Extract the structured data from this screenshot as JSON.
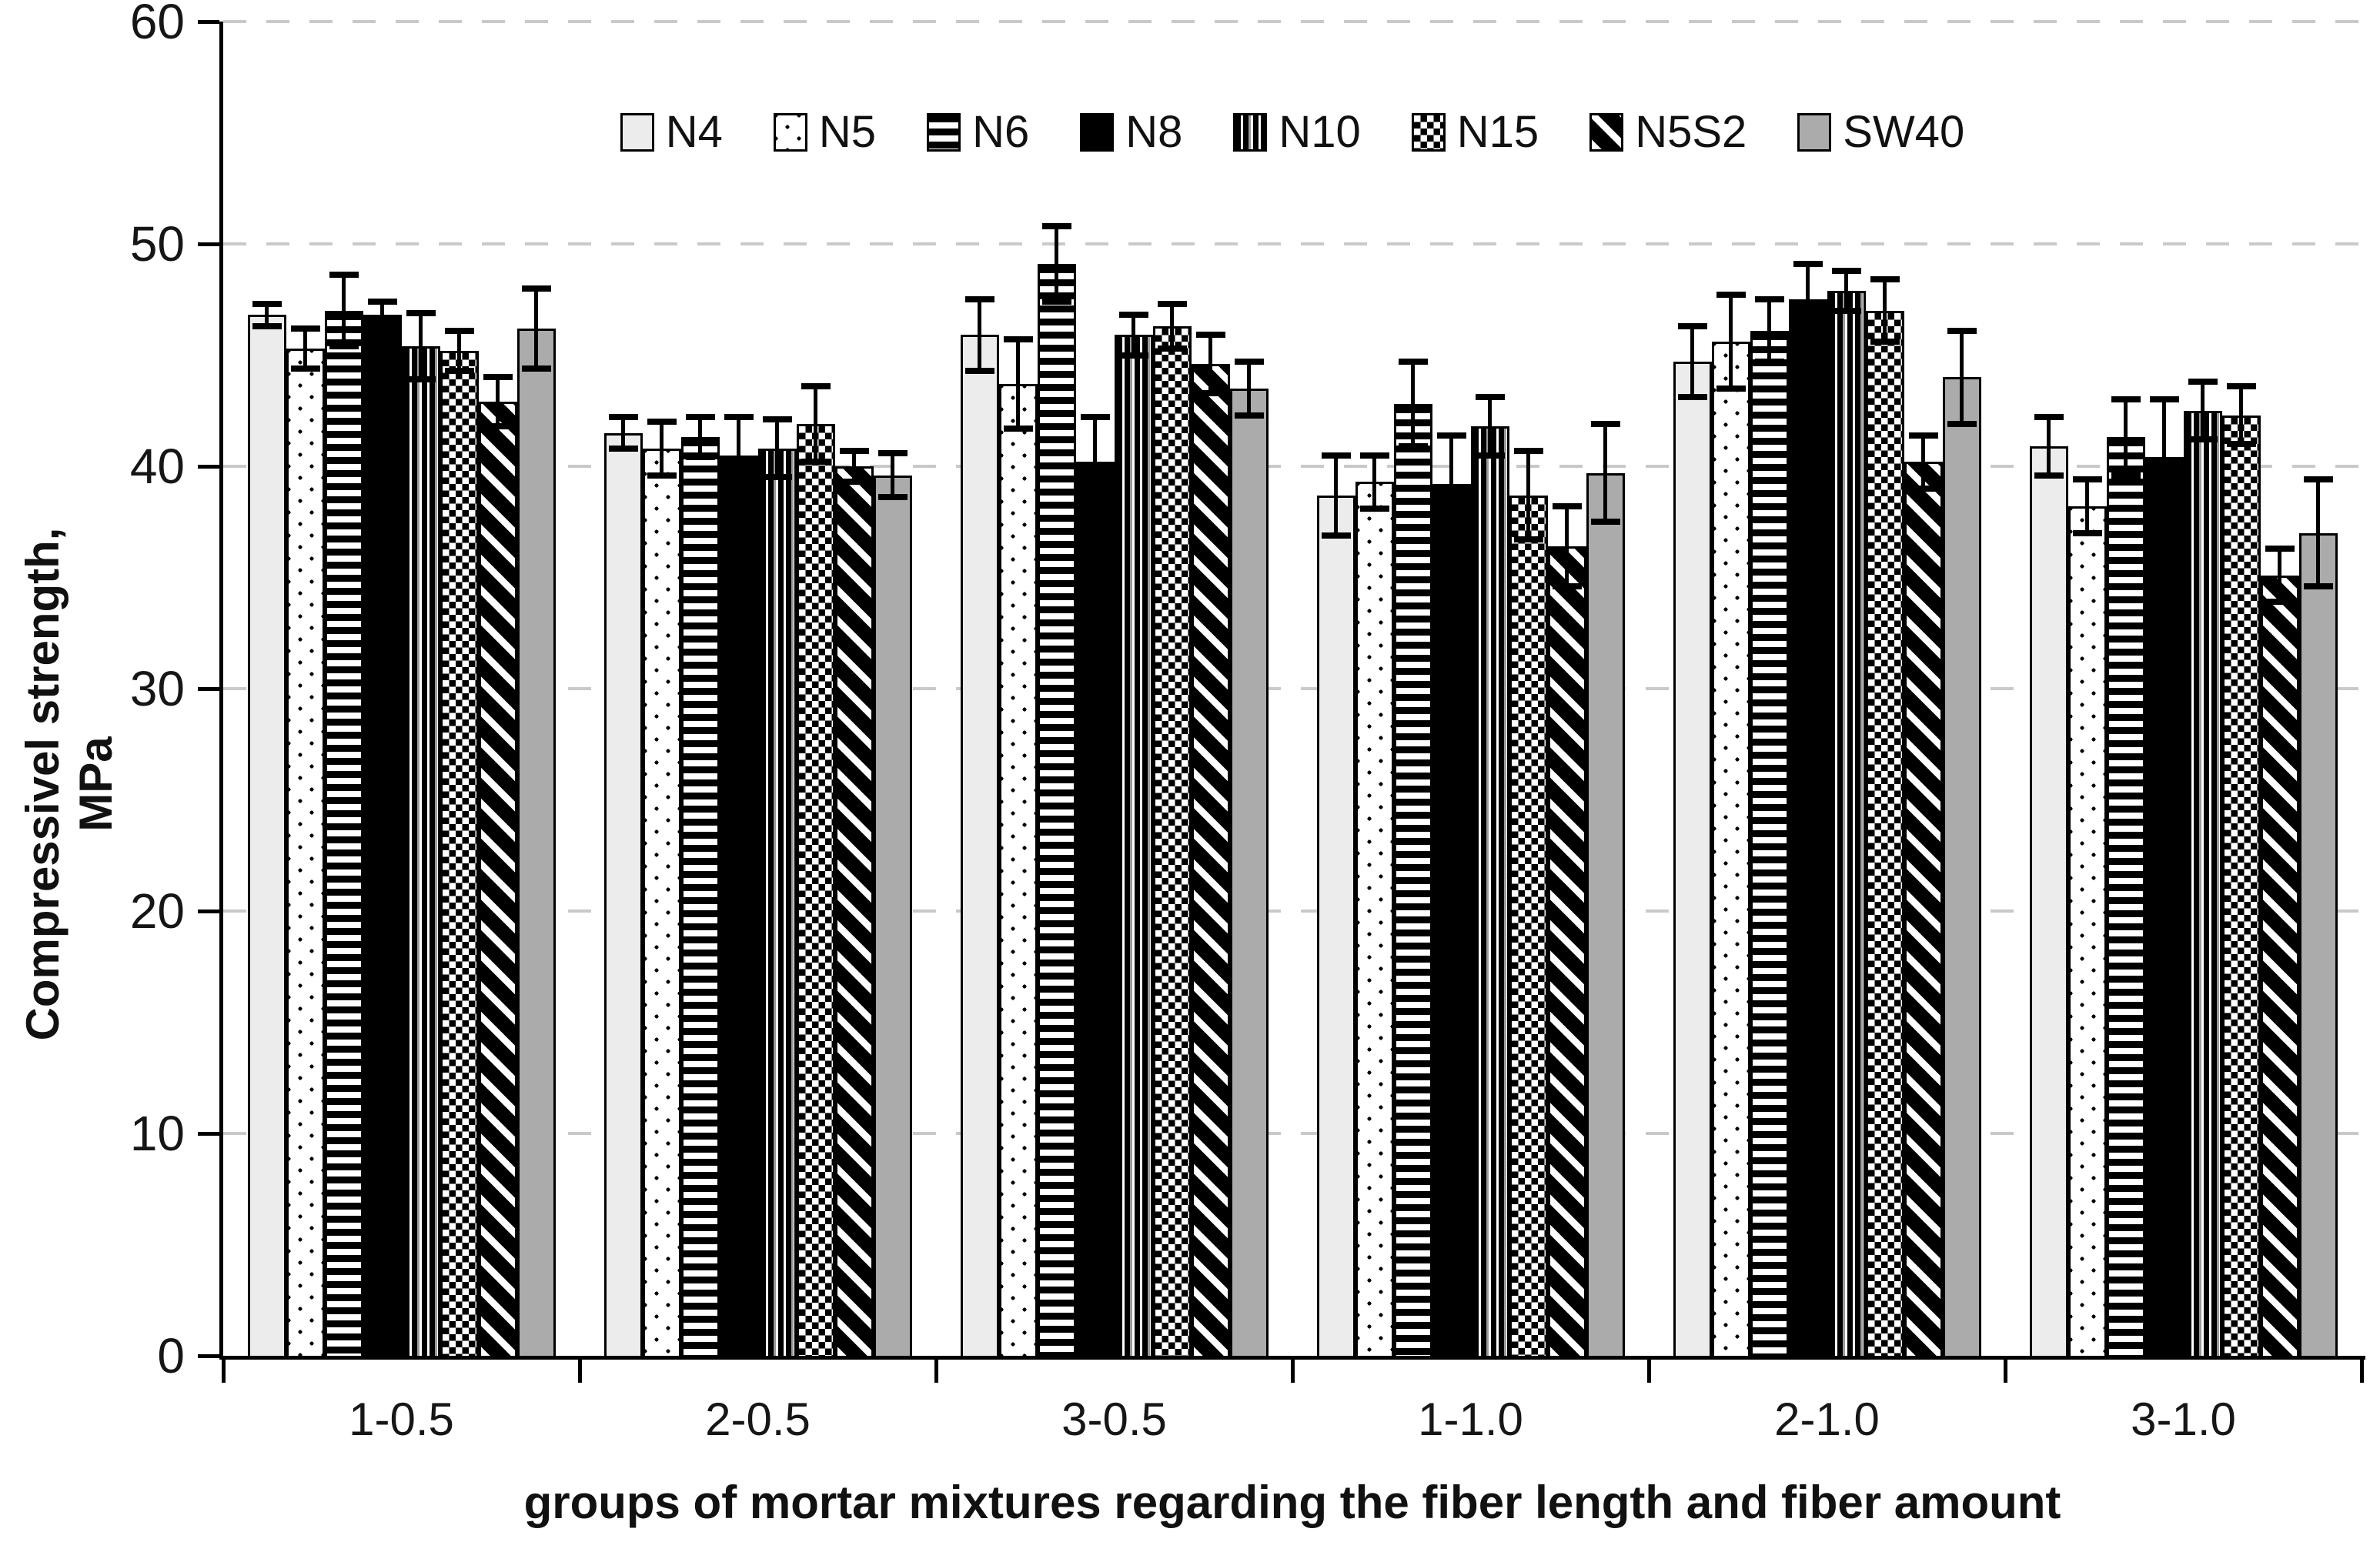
{
  "chart_data": {
    "type": "bar",
    "title": "",
    "xlabel": "groups of mortar mixtures regarding the fiber length and fiber amount",
    "ylabel": "Compressivel strength, MPa",
    "ylim": [
      0,
      60
    ],
    "yticks": [
      0,
      10,
      20,
      30,
      40,
      50,
      60
    ],
    "grid": "dashed horizontal at every 10 MPa",
    "legend_position": "top center, horizontal",
    "categories": [
      "1-0.5",
      "2-0.5",
      "3-0.5",
      "1-1.0",
      "2-1.0",
      "3-1.0"
    ],
    "series": [
      {
        "name": "N4",
        "pattern": "light-gray-solid",
        "values": [
          46.8,
          41.5,
          45.9,
          38.7,
          44.7,
          40.9
        ],
        "errors": [
          0.5,
          0.7,
          1.6,
          1.8,
          1.6,
          1.3
        ]
      },
      {
        "name": "N5",
        "pattern": "sparse-dots",
        "values": [
          45.3,
          40.8,
          43.7,
          39.3,
          45.6,
          38.2
        ],
        "errors": [
          0.9,
          1.2,
          2.0,
          1.2,
          2.1,
          1.2
        ]
      },
      {
        "name": "N6",
        "pattern": "horizontal-stripes",
        "values": [
          47.0,
          41.3,
          49.1,
          42.8,
          46.1,
          41.3
        ],
        "errors": [
          1.6,
          0.9,
          1.7,
          1.9,
          1.4,
          1.7
        ]
      },
      {
        "name": "N8",
        "pattern": "black-solid",
        "values": [
          46.8,
          40.5,
          40.2,
          39.2,
          47.5,
          40.4
        ],
        "errors": [
          0.6,
          1.7,
          2.0,
          2.2,
          1.6,
          2.6
        ]
      },
      {
        "name": "N10",
        "pattern": "vertical-stripes",
        "values": [
          45.4,
          40.8,
          45.9,
          41.8,
          47.9,
          42.5
        ],
        "errors": [
          1.5,
          1.3,
          0.9,
          1.3,
          0.9,
          1.3
        ]
      },
      {
        "name": "N15",
        "pattern": "checkerboard",
        "values": [
          45.2,
          41.9,
          46.3,
          38.7,
          47.0,
          42.3
        ],
        "errors": [
          0.9,
          1.7,
          1.0,
          2.0,
          1.4,
          1.3
        ]
      },
      {
        "name": "N5S2",
        "pattern": "wide-diagonal-stripes",
        "values": [
          42.9,
          40.0,
          44.6,
          36.4,
          40.2,
          35.1
        ],
        "errors": [
          1.1,
          0.7,
          1.3,
          1.8,
          1.2,
          1.2
        ]
      },
      {
        "name": "SW40",
        "pattern": "gray-solid",
        "values": [
          46.2,
          39.6,
          43.5,
          39.7,
          44.0,
          37.0
        ],
        "errors": [
          1.8,
          1.0,
          1.2,
          2.2,
          2.1,
          2.4
        ]
      }
    ],
    "error_bars": "symmetric, black caps",
    "colors": {
      "light_gray_fill": "#ececec",
      "gray_fill": "#ababab",
      "black": "#000000",
      "gridline": "#c9c9c9",
      "background": "#ffffff"
    }
  }
}
